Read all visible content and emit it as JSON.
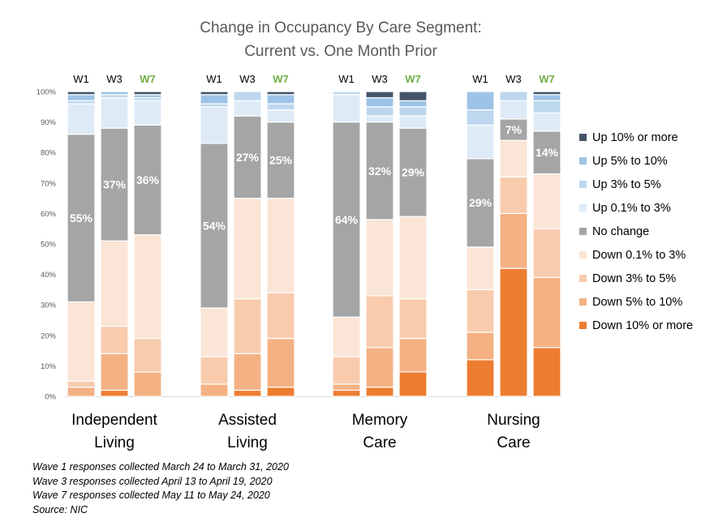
{
  "chart_data": {
    "type": "bar",
    "stacked": true,
    "title": "Change in Occupancy By Care Segment:",
    "subtitle": "Current vs. One Month Prior",
    "ylim": [
      0,
      100
    ],
    "y_ticks": [
      "0%",
      "10%",
      "20%",
      "30%",
      "40%",
      "50%",
      "60%",
      "70%",
      "80%",
      "90%",
      "100%"
    ],
    "legend_position": "right",
    "legend": [
      {
        "name": "Up 10% or more",
        "color": "#44546a"
      },
      {
        "name": "Up 5% to 10%",
        "color": "#9dc3e6"
      },
      {
        "name": "Up 3% to 5%",
        "color": "#bdd7ee"
      },
      {
        "name": "Up 0.1% to 3%",
        "color": "#deebf7"
      },
      {
        "name": "No change",
        "color": "#a5a5a5"
      },
      {
        "name": "Down 0.1% to 3%",
        "color": "#fbe5d6"
      },
      {
        "name": "Down 3% to 5%",
        "color": "#f8cbad"
      },
      {
        "name": "Down 5% to 10%",
        "color": "#f4b183"
      },
      {
        "name": "Down 10% or more",
        "color": "#ed7d31"
      }
    ],
    "series_order_bottom_to_top": [
      "Down 10% or more",
      "Down 5% to 10%",
      "Down 3% to 5%",
      "Down 0.1% to 3%",
      "No change",
      "Up 0.1% to 3%",
      "Up 3% to 5%",
      "Up 5% to 10%",
      "Up 10% or more"
    ],
    "groups": [
      {
        "name": "Independent Living",
        "label_lines": [
          "Independent",
          "Living"
        ],
        "bars": [
          {
            "wave": "W1",
            "values": [
              0,
              3,
              2,
              26,
              55,
              10,
              1,
              2,
              1
            ],
            "label": "55%"
          },
          {
            "wave": "W3",
            "values": [
              2,
              12,
              9,
              28,
              37,
              10,
              1,
              1,
              0
            ],
            "label": "37%"
          },
          {
            "wave": "W7",
            "values": [
              0,
              8,
              11,
              34,
              36,
              8,
              1,
              1,
              1
            ],
            "label": "36%"
          }
        ]
      },
      {
        "name": "Assisted Living",
        "label_lines": [
          "Assisted",
          "Living"
        ],
        "bars": [
          {
            "wave": "W1",
            "values": [
              0,
              4,
              9,
              16,
              54,
              12,
              1,
              3,
              1
            ],
            "label": "54%"
          },
          {
            "wave": "W3",
            "values": [
              2,
              12,
              18,
              33,
              27,
              5,
              3,
              0,
              0
            ],
            "label": "27%"
          },
          {
            "wave": "W7",
            "values": [
              3,
              16,
              15,
              31,
              25,
              4,
              2,
              3,
              1
            ],
            "label": "25%"
          }
        ]
      },
      {
        "name": "Memory Care",
        "label_lines": [
          "Memory",
          "Care"
        ],
        "bars": [
          {
            "wave": "W1",
            "values": [
              2,
              2,
              9,
              13,
              64,
              9,
              1,
              0,
              0
            ],
            "label": "64%"
          },
          {
            "wave": "W3",
            "values": [
              3,
              13,
              17,
              25,
              32,
              2,
              3,
              3,
              2
            ],
            "label": "32%"
          },
          {
            "wave": "W7",
            "values": [
              8,
              11,
              13,
              27,
              29,
              4,
              3,
              2,
              3
            ],
            "label": "29%"
          }
        ]
      },
      {
        "name": "Nursing Care",
        "label_lines": [
          "Nursing",
          "Care"
        ],
        "bars": [
          {
            "wave": "W1",
            "values": [
              12,
              9,
              14,
              14,
              29,
              11,
              5,
              6,
              0
            ],
            "label": "29%"
          },
          {
            "wave": "W3",
            "values": [
              42,
              18,
              12,
              12,
              7,
              6,
              3,
              0,
              0
            ],
            "label": "7%"
          },
          {
            "wave": "W7",
            "values": [
              16,
              23,
              16,
              18,
              14,
              6,
              4,
              2,
              1
            ],
            "label": "14%"
          }
        ]
      }
    ],
    "wave_label_colors": {
      "W1": "#000000",
      "W3": "#000000",
      "W7": "#70ad47"
    }
  },
  "notes": [
    "Wave 1 responses collected March 24 to March 31, 2020",
    "Wave 3 responses collected April 13 to April 19, 2020",
    "Wave 7 responses collected May 11 to May 24, 2020",
    "Source: NIC"
  ]
}
